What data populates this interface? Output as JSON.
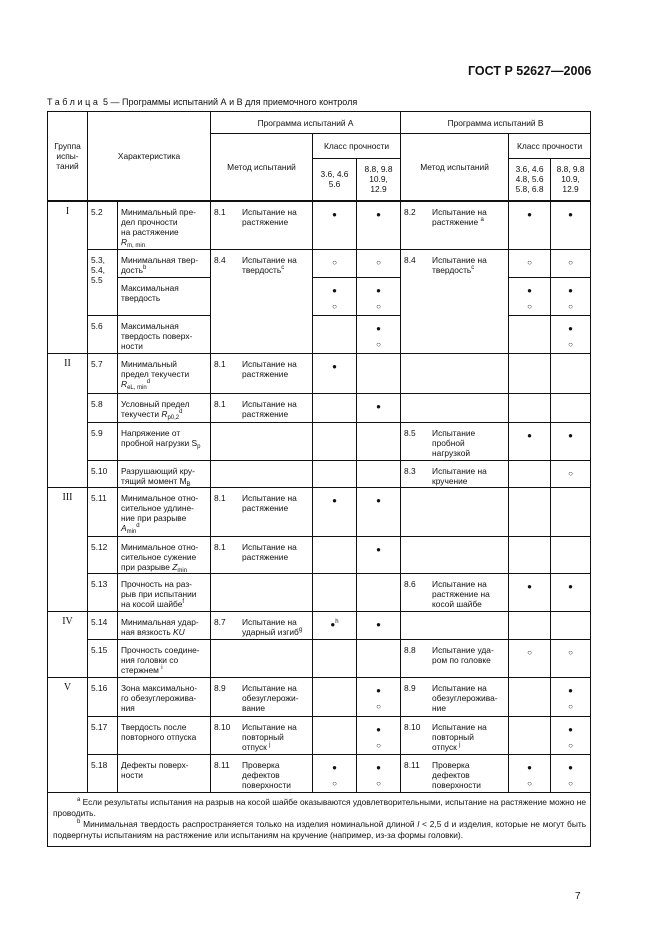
{
  "header": {
    "doc_code": "ГОСТ Р 52627—2006"
  },
  "caption": {
    "label": "Таблица",
    "text": "5 — Программы испытаний А и В для приемочного контроля"
  },
  "table": {
    "headers": {
      "group": "Группа\nиспы-\nтаний",
      "characteristic": "Характеристика",
      "program_a": "Программа испытаний А",
      "program_b": "Программа испытаний В",
      "method": "Метод испытаний",
      "strength_class": "Класс прочности",
      "class_a1": "3.6, 4.6\n5.6",
      "class_a2": "8.8, 9.8\n10.9,\n12.9",
      "class_b1": "3.6, 4.6\n4.8, 5.6\n5.8, 6.8",
      "class_b2": "8.8, 9.8\n10.9,\n12.9"
    },
    "rows": [
      {
        "group": "I",
        "code": "5.2",
        "char": "Минимальный пре-\nдел прочности\nна растяжение\n*{R}_{m, min}",
        "ma_code": "8.1",
        "ma_text": "Испытание на\nрастяжение",
        "a1": "●",
        "a2": "●",
        "mb_code": "8.2",
        "mb_text": "Испытание на\nрастяжение ^{а}",
        "b1": "●",
        "b2": "●"
      },
      {
        "code": "5.3,\n5.4,\n5.5",
        "char": "Минимальная твер-\nдость^{b}",
        "ma_code": "8.4",
        "ma_text": "Испытание на\nтвердость^{c}",
        "a1": "○",
        "a2": "○",
        "mb_code": "8.4",
        "mb_text": "Испытание на\nтвердость^{c}",
        "b1": "○",
        "b2": "○"
      },
      {
        "char": "Максимальная\nтвердость",
        "a1": "●○",
        "a2": "●○",
        "b1": "●○",
        "b2": "●○"
      },
      {
        "code": "5.6",
        "char": "Максимальная\nтвердость поверх-\nности",
        "a1": "",
        "a2": "●○",
        "b1": "",
        "b2": "●○"
      },
      {
        "group": "II",
        "code": "5.7",
        "char": "Минимальный\nпредел текучести\n*{R}_{eL, min}^{d}",
        "ma_code": "8.1",
        "ma_text": "Испытание на\nрастяжение",
        "a1": "●",
        "a2": "",
        "mb_code": "",
        "mb_text": "",
        "b1": "",
        "b2": ""
      },
      {
        "code": "5.8",
        "char": "Условный предел\nтекучести *{R}_{p0,2}^{d}",
        "ma_code": "8.1",
        "ma_text": "Испытание на\nрастяжение",
        "a1": "",
        "a2": "●",
        "mb_code": "",
        "mb_text": "",
        "b1": "",
        "b2": ""
      },
      {
        "code": "5.9",
        "char": "Напряжение от\nпробной нагрузки S_{p}",
        "ma_code": "",
        "ma_text": "",
        "a1": "",
        "a2": "",
        "mb_code": "8.5",
        "mb_text": "Испытание\nпробной\nнагрузкой",
        "b1": "●",
        "b2": "●"
      },
      {
        "code": "5.10",
        "char": "Разрушающий кру-\nтящий момент M_{B}",
        "ma_code": "",
        "ma_text": "",
        "a1": "",
        "a2": "",
        "mb_code": "8.3",
        "mb_text": "Испытание на\nкручение",
        "b1": "",
        "b2": "○"
      },
      {
        "group": "III",
        "code": "5.11",
        "char": "Минимальное отно-\nсительное удлине-\nние при разрыве\n*{A}_{min}^{d}",
        "ma_code": "8.1",
        "ma_text": "Испытание на\nрастяжение",
        "a1": "●",
        "a2": "●",
        "mb_code": "",
        "mb_text": "",
        "b1": "",
        "b2": ""
      },
      {
        "code": "5.12",
        "char": "Минимальное отно-\nсительное сужение\nпри разрыве *{Z}_{min}",
        "ma_code": "8.1",
        "ma_text": "Испытание на\nрастяжение",
        "a1": "",
        "a2": "●",
        "mb_code": "",
        "mb_text": "",
        "b1": "",
        "b2": ""
      },
      {
        "code": "5.13",
        "char": "Прочность на раз-\nрыв при испытании\nна косой шайбе^{f}",
        "ma_code": "",
        "ma_text": "",
        "a1": "",
        "a2": "",
        "mb_code": "8.6",
        "mb_text": "Испытание на\nрастяжение на\nкосой шайбе",
        "b1": "●",
        "b2": "●"
      },
      {
        "group": "IV",
        "code": "5.14",
        "char": "Минимальная удар-\nная вязкость *{KU}",
        "ma_code": "8.7",
        "ma_text": "Испытание на\nударный изгиб^{g}",
        "a1": "●^{h}",
        "a2": "●",
        "mb_code": "",
        "mb_text": "",
        "b1": "",
        "b2": ""
      },
      {
        "code": "5.15",
        "char": "Прочность соедине-\nния головки со\nстержнем ^{i}",
        "ma_code": "",
        "ma_text": "",
        "a1": "",
        "a2": "",
        "mb_code": "8.8",
        "mb_text": "Испытание уда-\nром по головке",
        "b1": "○",
        "b2": "○"
      },
      {
        "group": "V",
        "code": "5.16",
        "char": "Зона максимально-\nго обезуглерожива-\nния",
        "ma_code": "8.9",
        "ma_text": "Испытание на\nобезуглерожи-\nвание",
        "a1": "",
        "a2": "●○",
        "mb_code": "8.9",
        "mb_text": "Испытание на\nобезуглерожива-\nние",
        "b1": "",
        "b2": "●○"
      },
      {
        "code": "5.17",
        "char": "Твердость после\nповторного отпуска",
        "ma_code": "8.10",
        "ma_text": "Испытание на\nповторный\nотпуск ^{j}",
        "a1": "",
        "a2": "●○",
        "mb_code": "8.10",
        "mb_text": "Испытание на\nповторный\nотпуск ^{j}",
        "b1": "",
        "b2": "●○"
      },
      {
        "code": "5.18",
        "char": "Дефекты поверх-\nности",
        "ma_code": "8.11",
        "ma_text": "Проверка\nдефектов\nповерхности",
        "a1": "●○",
        "a2": "●○",
        "mb_code": "8.11",
        "mb_text": "Проверка\nдефектов\nповерхности",
        "b1": "●○",
        "b2": "●○"
      }
    ],
    "footnotes": [
      "^{a} Если результаты испытания на разрыв на косой шайбе оказываются удовлетворительными, испытание на растяжение можно не проводить.",
      "^{b} Минимальная твердость распространяется только на изделия номинальной длиной *{l} < 2,5 d и изделия, которые не могут быть подвергнуты испытаниям на растяжение или испытаниям на кручение (например, из-за формы головки)."
    ]
  },
  "page_number": "7"
}
